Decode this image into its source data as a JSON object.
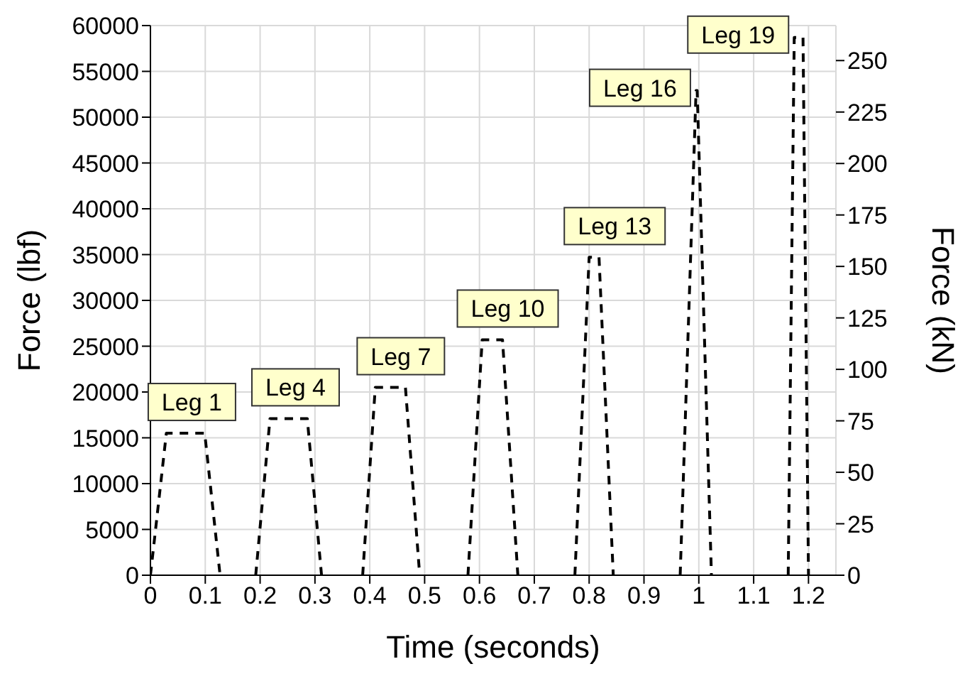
{
  "chart_data": {
    "type": "line",
    "xlabel": "Time (seconds)",
    "ylabel": "Force (lbf)",
    "y2label": "Force (kN)",
    "xlim": [
      0,
      1.25
    ],
    "xticks": [
      0,
      0.1,
      0.2,
      0.3,
      0.4,
      0.5,
      0.6,
      0.7,
      0.8,
      0.9,
      1,
      1.1,
      1.2
    ],
    "ylim": [
      0,
      60000
    ],
    "yticks": [
      0,
      5000,
      10000,
      15000,
      20000,
      25000,
      30000,
      35000,
      40000,
      45000,
      50000,
      55000,
      60000
    ],
    "y2lim": [
      0,
      267
    ],
    "y2ticks": [
      0,
      25,
      50,
      75,
      100,
      125,
      150,
      175,
      200,
      225,
      250
    ],
    "grid": true,
    "marker": "none",
    "line_style": "dashed",
    "series": [
      {
        "color": "#000000",
        "x": [
          0,
          0.029,
          0.099,
          0.127
        ],
        "values": [
          0,
          15500,
          15500,
          0
        ]
      },
      {
        "color": "#000000",
        "x": [
          0.192,
          0.218,
          0.286,
          0.312
        ],
        "values": [
          0,
          17100,
          17100,
          0
        ]
      },
      {
        "color": "#000000",
        "x": [
          0.387,
          0.41,
          0.465,
          0.491
        ],
        "values": [
          0,
          20500,
          20500,
          0
        ]
      },
      {
        "color": "#000000",
        "x": [
          0.579,
          0.605,
          0.642,
          0.67
        ],
        "values": [
          0,
          25700,
          25700,
          0
        ]
      },
      {
        "color": "#000000",
        "x": [
          0.774,
          0.8,
          0.818,
          0.844
        ],
        "values": [
          0,
          34700,
          34700,
          0
        ]
      },
      {
        "color": "#000000",
        "x": [
          0.966,
          0.995,
          0.997,
          1.023
        ],
        "values": [
          0,
          52900,
          52900,
          0
        ]
      },
      {
        "color": "#000000",
        "x": [
          1.163,
          1.174,
          1.19,
          1.2
        ],
        "values": [
          0,
          58700,
          58700,
          0
        ]
      }
    ],
    "annotations": [
      {
        "text": "Leg 1",
        "x": 0.029,
        "y": 15500
      },
      {
        "text": "Leg 4",
        "x": 0.218,
        "y": 17100
      },
      {
        "text": "Leg 7",
        "x": 0.41,
        "y": 20500
      },
      {
        "text": "Leg 10",
        "x": 0.605,
        "y": 25700
      },
      {
        "text": "Leg 13",
        "x": 0.8,
        "y": 34700
      },
      {
        "text": "Leg 16",
        "x": 0.995,
        "y": 52900
      },
      {
        "text": "Leg 19",
        "x": 1.174,
        "y": 58700
      }
    ]
  }
}
